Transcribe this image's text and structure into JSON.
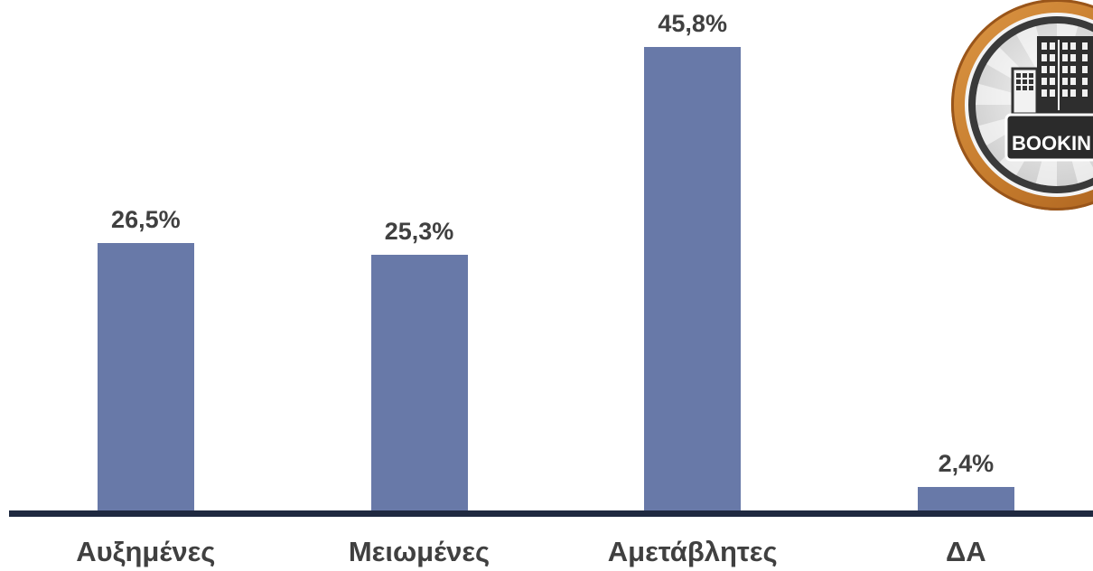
{
  "logo": {
    "text": "BOOKIN",
    "icon": "hotel-building-icon"
  },
  "chart_data": {
    "type": "bar",
    "categories": [
      "Αυξημένες",
      "Μειωμένες",
      "Αμετάβλητες",
      "ΔΑ"
    ],
    "values": [
      26.5,
      25.3,
      45.8,
      2.4
    ],
    "value_labels": [
      "26,5%",
      "25,3%",
      "45,8%",
      "2,4%"
    ],
    "ylim": [
      0,
      50
    ],
    "grid": false,
    "colors": {
      "bar": "#6879a8",
      "axis": "#1f2940",
      "text": "#404040"
    }
  }
}
